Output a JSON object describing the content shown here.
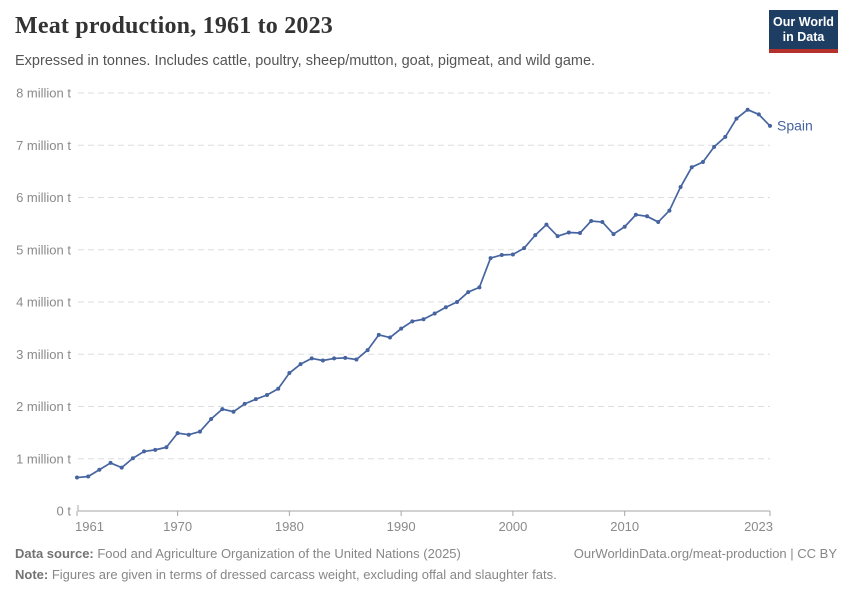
{
  "header": {
    "title": "Meat production, 1961 to 2023",
    "subtitle": "Expressed in tonnes. Includes cattle, poultry, sheep/mutton, goat, pigmeat, and wild game.",
    "logo": {
      "line1": "Our World",
      "line2": "in Data"
    }
  },
  "brand": {
    "logo_background": "#1d3d63",
    "logo_bar": "#b5312c",
    "accent_line": "#4664a0"
  },
  "chart_data": {
    "type": "line",
    "title": "Meat production, 1961 to 2023",
    "unit": "tonnes",
    "grid": "horizontal-dashed",
    "legend_position": "end-of-line",
    "xlim": [
      1961,
      2023
    ],
    "ylim": [
      0,
      8000000
    ],
    "x_ticks": [
      1961,
      1970,
      1980,
      1990,
      2000,
      2010,
      2023
    ],
    "y_ticks": [
      {
        "value": 0,
        "label": "0 t"
      },
      {
        "value": 1000000,
        "label": "1 million t"
      },
      {
        "value": 2000000,
        "label": "2 million t"
      },
      {
        "value": 3000000,
        "label": "3 million t"
      },
      {
        "value": 4000000,
        "label": "4 million t"
      },
      {
        "value": 5000000,
        "label": "5 million t"
      },
      {
        "value": 6000000,
        "label": "6 million t"
      },
      {
        "value": 7000000,
        "label": "7 million t"
      },
      {
        "value": 8000000,
        "label": "8 million t"
      }
    ],
    "series": [
      {
        "name": "Spain",
        "color": "#4664a0",
        "x": [
          1961,
          1962,
          1963,
          1964,
          1965,
          1966,
          1967,
          1968,
          1969,
          1970,
          1971,
          1972,
          1973,
          1974,
          1975,
          1976,
          1977,
          1978,
          1979,
          1980,
          1981,
          1982,
          1983,
          1984,
          1985,
          1986,
          1987,
          1988,
          1989,
          1990,
          1991,
          1992,
          1993,
          1994,
          1995,
          1996,
          1997,
          1998,
          1999,
          2000,
          2001,
          2002,
          2003,
          2004,
          2005,
          2006,
          2007,
          2008,
          2009,
          2010,
          2011,
          2012,
          2013,
          2014,
          2015,
          2016,
          2017,
          2018,
          2019,
          2020,
          2021,
          2022,
          2023
        ],
        "values": [
          640000,
          660000,
          790000,
          920000,
          830000,
          1010000,
          1140000,
          1170000,
          1220000,
          1490000,
          1460000,
          1520000,
          1760000,
          1950000,
          1900000,
          2050000,
          2140000,
          2220000,
          2340000,
          2640000,
          2810000,
          2920000,
          2880000,
          2920000,
          2930000,
          2900000,
          3080000,
          3370000,
          3320000,
          3490000,
          3630000,
          3670000,
          3780000,
          3900000,
          4000000,
          4190000,
          4280000,
          4840000,
          4900000,
          4910000,
          5030000,
          5280000,
          5480000,
          5260000,
          5330000,
          5320000,
          5550000,
          5530000,
          5300000,
          5440000,
          5670000,
          5640000,
          5530000,
          5750000,
          6200000,
          6580000,
          6680000,
          6970000,
          7160000,
          7510000,
          7680000,
          7590000,
          7370000
        ]
      }
    ]
  },
  "footer": {
    "datasource_label": "Data source:",
    "datasource_text": " Food and Agriculture Organization of the United Nations (2025)",
    "link_text": "OurWorldinData.org/meat-production | CC BY",
    "note_label": "Note:",
    "note_text": " Figures are given in terms of dressed carcass weight, excluding offal and slaughter fats."
  }
}
